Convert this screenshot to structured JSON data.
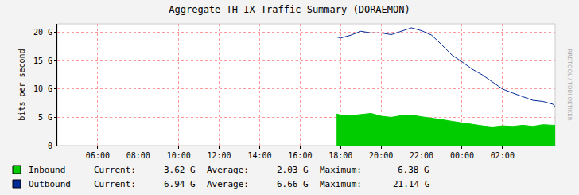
{
  "chart_data": {
    "type": "line",
    "title": "Aggregate TH-IX Traffic Summary (DORAEMON)",
    "y_label": "bits per second",
    "watermark": "RRDTOOL / TOBI OETIKER",
    "x": [
      17.8,
      18,
      18.5,
      19,
      19.5,
      20,
      20.5,
      21,
      21.5,
      22,
      22.5,
      23,
      23.5,
      24,
      24.5,
      25,
      25.5,
      26,
      26.5,
      27,
      27.5,
      28,
      28.5,
      28.6
    ],
    "series": [
      {
        "name": "Inbound",
        "type": "area",
        "color": "#00cc00",
        "values": [
          5.6,
          5.4,
          5.3,
          5.5,
          5.7,
          5.2,
          5.0,
          5.3,
          5.4,
          5.1,
          4.9,
          4.6,
          4.3,
          4.0,
          3.8,
          3.5,
          3.3,
          3.5,
          3.4,
          3.6,
          3.4,
          3.7,
          3.6,
          3.6
        ],
        "stats": [
          {
            "label": "Current:",
            "value": "3.62 G"
          },
          {
            "label": "Average:",
            "value": "2.03 G"
          },
          {
            "label": "Maximum:",
            "value": "6.38 G"
          }
        ]
      },
      {
        "name": "Outbound",
        "type": "line",
        "color": "#002a97",
        "values": [
          19.2,
          19.0,
          19.5,
          20.2,
          19.9,
          19.9,
          19.6,
          20.2,
          20.8,
          20.3,
          19.5,
          17.8,
          16.0,
          14.8,
          13.5,
          12.5,
          11.2,
          10.0,
          9.3,
          8.6,
          8.0,
          7.8,
          7.3,
          6.9
        ],
        "stats": [
          {
            "label": "Current:",
            "value": "6.94 G"
          },
          {
            "label": "Average:",
            "value": "6.66 G"
          },
          {
            "label": "Maximum:",
            "value": "21.14 G"
          }
        ]
      }
    ],
    "xlim": [
      4,
      28.6
    ],
    "xticks": [
      {
        "value": 6,
        "label": "06:00"
      },
      {
        "value": 8,
        "label": "08:00"
      },
      {
        "value": 10,
        "label": "10:00"
      },
      {
        "value": 12,
        "label": "12:00"
      },
      {
        "value": 14,
        "label": "14:00"
      },
      {
        "value": 16,
        "label": "16:00"
      },
      {
        "value": 18,
        "label": "18:00"
      },
      {
        "value": 20,
        "label": "20:00"
      },
      {
        "value": 22,
        "label": "22:00"
      },
      {
        "value": 24,
        "label": "00:00"
      },
      {
        "value": 26,
        "label": "02:00"
      }
    ],
    "ylim": [
      0,
      21.5
    ],
    "yticks": [
      0,
      {
        "value": 5,
        "label": "5 G"
      },
      {
        "value": 10,
        "label": "10 G"
      },
      {
        "value": 15,
        "label": "15 G"
      },
      {
        "value": 20,
        "label": "20 G"
      }
    ],
    "grid": true
  }
}
